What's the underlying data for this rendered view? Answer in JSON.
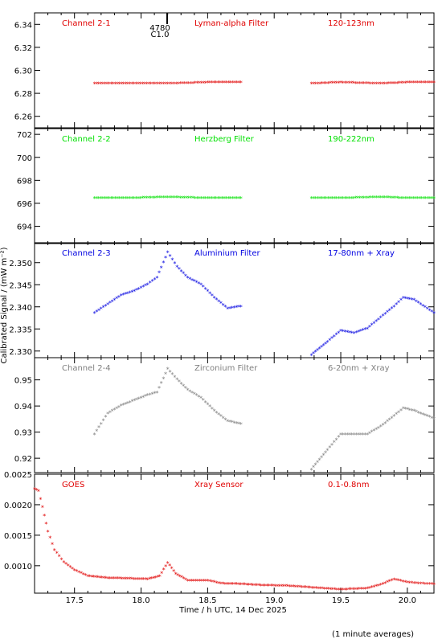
{
  "figure": {
    "ylabel": "Calibrated Signal / (mW m⁻²)",
    "xlabel": "Time / h UTC, 14 Dec 2025",
    "footnote": "(1 minute averages)",
    "marker": {
      "value1": "4780",
      "value2": "C1.0",
      "time": 18.2
    }
  },
  "chart_data": [
    {
      "type": "scatter",
      "panel": "Channel 2-1",
      "filter": "Lyman-alpha Filter",
      "band": "120-123nm",
      "color": "#e00000",
      "ylim": [
        6.25,
        6.35
      ],
      "yticks": [
        6.26,
        6.28,
        6.3,
        6.32,
        6.34
      ],
      "ytick_labels": [
        "6.26",
        "6.28",
        "6.30",
        "6.32",
        "6.34"
      ],
      "xlim": [
        17.2,
        20.2
      ],
      "segments": [
        {
          "x": [
            17.65,
            17.9,
            18.2,
            18.5,
            18.75
          ],
          "y": [
            6.288,
            6.288,
            6.288,
            6.289,
            6.289
          ]
        },
        {
          "x": [
            19.28,
            19.5,
            19.8,
            20.0,
            20.2
          ],
          "y": [
            6.288,
            6.289,
            6.288,
            6.289,
            6.289
          ]
        }
      ]
    },
    {
      "type": "scatter",
      "panel": "Channel 2-2",
      "filter": "Herzberg Filter",
      "band": "190-222nm",
      "color": "#00e000",
      "ylim": [
        692.5,
        702.5
      ],
      "yticks": [
        694,
        696,
        698,
        700,
        702
      ],
      "ytick_labels": [
        "694",
        "696",
        "698",
        "700",
        "702"
      ],
      "xlim": [
        17.2,
        20.2
      ],
      "segments": [
        {
          "x": [
            17.65,
            17.9,
            18.2,
            18.5,
            18.75
          ],
          "y": [
            696.4,
            696.4,
            696.5,
            696.4,
            696.4
          ]
        },
        {
          "x": [
            19.28,
            19.5,
            19.8,
            20.0,
            20.2
          ],
          "y": [
            696.4,
            696.4,
            696.5,
            696.4,
            696.4
          ]
        }
      ]
    },
    {
      "type": "scatter",
      "panel": "Channel 2-3",
      "filter": "Aluminium Filter",
      "band": "17-80nm + Xray",
      "color": "#0000e0",
      "ylim": [
        2.3285,
        2.3545
      ],
      "yticks": [
        2.33,
        2.335,
        2.34,
        2.345,
        2.35
      ],
      "ytick_labels": [
        "2.330",
        "2.335",
        "2.340",
        "2.345",
        "2.350"
      ],
      "xlim": [
        17.2,
        20.2
      ],
      "segments": [
        {
          "x": [
            17.65,
            17.75,
            17.85,
            17.95,
            18.05,
            18.12,
            18.2,
            18.27,
            18.35,
            18.45,
            18.55,
            18.65,
            18.75
          ],
          "y": [
            2.3385,
            2.3405,
            2.3425,
            2.3435,
            2.345,
            2.3465,
            2.3522,
            2.349,
            2.3465,
            2.345,
            2.342,
            2.3395,
            2.34
          ]
        },
        {
          "x": [
            19.28,
            19.4,
            19.5,
            19.6,
            19.7,
            19.8,
            19.9,
            19.97,
            20.05,
            20.15,
            20.2
          ],
          "y": [
            2.329,
            2.332,
            2.3345,
            2.334,
            2.335,
            2.3375,
            2.34,
            2.342,
            2.3415,
            2.3395,
            2.3385
          ]
        }
      ]
    },
    {
      "type": "scatter",
      "panel": "Channel 2-4",
      "filter": "Zirconium Filter",
      "band": "6-20nm + Xray",
      "color": "#808080",
      "ylim": [
        0.9145,
        0.9585
      ],
      "yticks": [
        0.92,
        0.93,
        0.94,
        0.95
      ],
      "ytick_labels": [
        "0.92",
        "0.93",
        "0.94",
        "0.95"
      ],
      "xlim": [
        17.2,
        20.2
      ],
      "segments": [
        {
          "x": [
            17.65,
            17.75,
            17.85,
            17.95,
            18.05,
            18.12,
            18.2,
            18.27,
            18.35,
            18.45,
            18.55,
            18.65,
            18.75
          ],
          "y": [
            0.929,
            0.937,
            0.94,
            0.942,
            0.944,
            0.945,
            0.954,
            0.95,
            0.946,
            0.943,
            0.938,
            0.934,
            0.933
          ]
        },
        {
          "x": [
            19.28,
            19.4,
            19.5,
            19.6,
            19.7,
            19.8,
            19.9,
            19.97,
            20.05,
            20.15,
            20.2
          ],
          "y": [
            0.9155,
            0.923,
            0.929,
            0.929,
            0.929,
            0.932,
            0.936,
            0.939,
            0.938,
            0.936,
            0.935
          ]
        }
      ]
    },
    {
      "type": "scatter",
      "panel": "GOES",
      "filter": "Xray Sensor",
      "band": "0.1-0.8nm",
      "color": "#e00000",
      "ylim": [
        0.00055,
        0.0025
      ],
      "yticks": [
        0.001,
        0.0015,
        0.002,
        0.0025
      ],
      "ytick_labels": [
        "0.0010",
        "0.0015",
        "0.0020",
        "0.0025"
      ],
      "xlim": [
        17.2,
        20.2
      ],
      "segments": [
        {
          "x": [
            17.2,
            17.23,
            17.26,
            17.3,
            17.35,
            17.42,
            17.5,
            17.6,
            17.75,
            17.9,
            18.05,
            18.14,
            18.2,
            18.26,
            18.35,
            18.5,
            18.6,
            18.75,
            18.9,
            19.1,
            19.3,
            19.5,
            19.7,
            19.8,
            19.9,
            20.0,
            20.1,
            20.2
          ],
          "y": [
            0.00225,
            0.00222,
            0.00195,
            0.00155,
            0.00125,
            0.00105,
            0.00092,
            0.00082,
            0.00079,
            0.00078,
            0.00077,
            0.00082,
            0.00104,
            0.00086,
            0.00075,
            0.00075,
            0.0007,
            0.00069,
            0.00067,
            0.00066,
            0.00063,
            0.0006,
            0.00062,
            0.00068,
            0.00077,
            0.00072,
            0.0007,
            0.00069
          ]
        }
      ]
    }
  ],
  "xticks": [
    17.5,
    18.0,
    18.5,
    19.0,
    19.5,
    20.0
  ],
  "xtick_labels": [
    "17.5",
    "18.0",
    "18.5",
    "19.0",
    "19.5",
    "20.0"
  ]
}
